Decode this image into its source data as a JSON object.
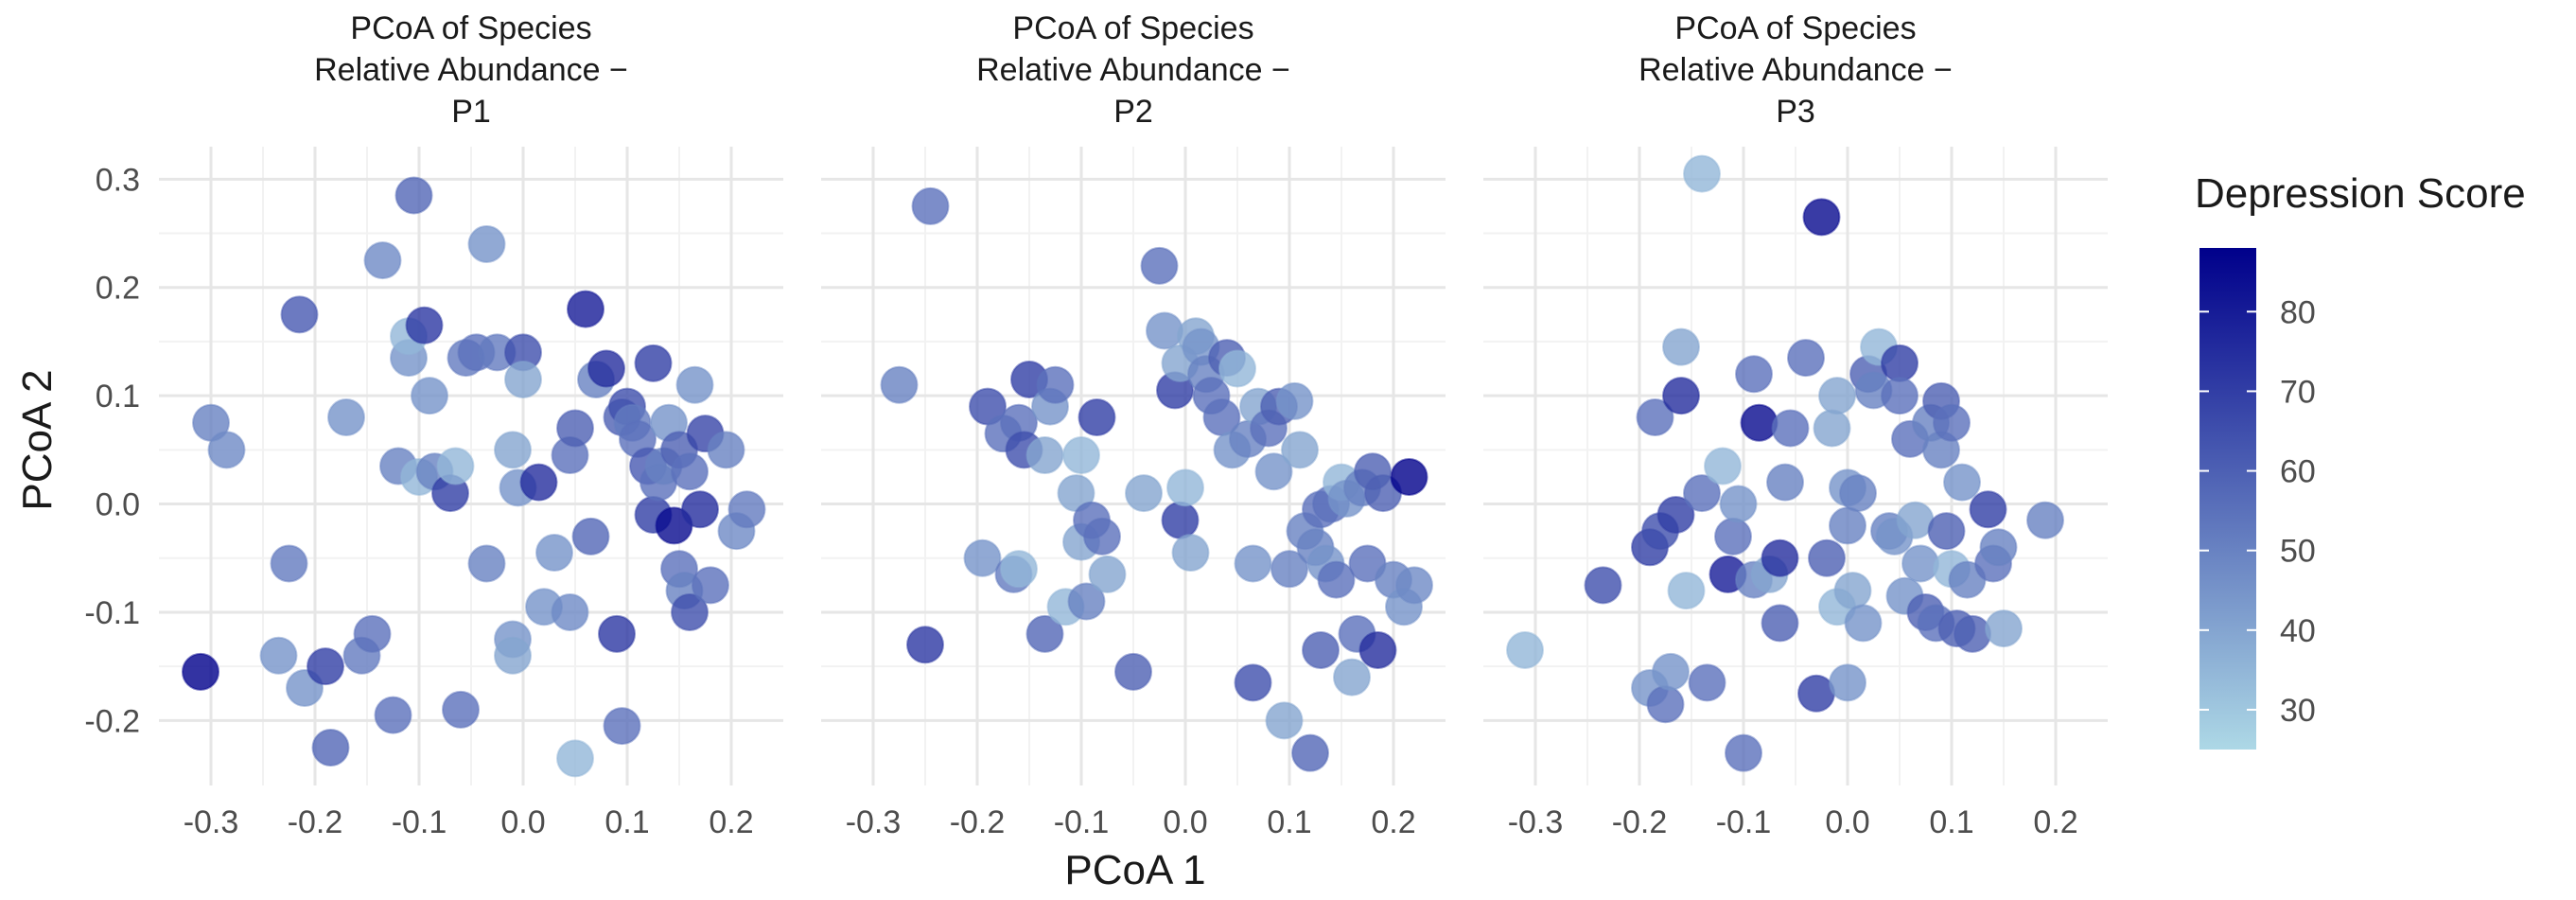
{
  "chart_data": {
    "type": "scatter",
    "xlabel": "PCoA 1",
    "ylabel": "PCoA 2",
    "xlim": [
      -0.35,
      0.25
    ],
    "ylim": [
      -0.26,
      0.33
    ],
    "xticks": [
      "-0.3",
      "-0.2",
      "-0.1",
      "0.0",
      "0.1",
      "0.2"
    ],
    "yticks": [
      "0.3",
      "0.2",
      "0.1",
      "0.0",
      "-0.1",
      "-0.2"
    ],
    "grid": true,
    "legend": {
      "title": "Depression Score",
      "position": "right",
      "min": 25,
      "max": 88,
      "ticks": [
        "80",
        "70",
        "60",
        "50",
        "40",
        "30"
      ],
      "color_low": "#add8e6",
      "color_high": "#00008b"
    },
    "panels": [
      {
        "title_lines": [
          "PCoA of Species",
          "Relative Abundance −",
          "P1"
        ],
        "points": [
          [
            -0.3,
            0.075,
            50
          ],
          [
            -0.285,
            0.05,
            48
          ],
          [
            -0.31,
            -0.155,
            88
          ],
          [
            -0.235,
            -0.14,
            45
          ],
          [
            -0.225,
            -0.055,
            52
          ],
          [
            -0.215,
            0.175,
            62
          ],
          [
            -0.21,
            -0.17,
            45
          ],
          [
            -0.19,
            -0.15,
            70
          ],
          [
            -0.185,
            -0.225,
            58
          ],
          [
            -0.17,
            0.08,
            45
          ],
          [
            -0.155,
            -0.14,
            52
          ],
          [
            -0.145,
            -0.12,
            55
          ],
          [
            -0.135,
            0.225,
            48
          ],
          [
            -0.125,
            -0.195,
            55
          ],
          [
            -0.12,
            0.035,
            50
          ],
          [
            -0.11,
            0.135,
            45
          ],
          [
            -0.11,
            0.155,
            35
          ],
          [
            -0.105,
            0.285,
            58
          ],
          [
            -0.1,
            0.025,
            35
          ],
          [
            -0.095,
            0.165,
            72
          ],
          [
            -0.09,
            0.1,
            45
          ],
          [
            -0.085,
            0.03,
            50
          ],
          [
            -0.07,
            0.01,
            70
          ],
          [
            -0.065,
            0.035,
            35
          ],
          [
            -0.06,
            -0.19,
            55
          ],
          [
            -0.055,
            0.135,
            52
          ],
          [
            -0.045,
            0.14,
            55
          ],
          [
            -0.035,
            0.24,
            45
          ],
          [
            -0.035,
            -0.055,
            50
          ],
          [
            -0.025,
            0.14,
            52
          ],
          [
            -0.01,
            0.05,
            40
          ],
          [
            -0.01,
            -0.125,
            45
          ],
          [
            -0.01,
            -0.14,
            40
          ],
          [
            -0.005,
            0.015,
            45
          ],
          [
            0.0,
            0.14,
            65
          ],
          [
            0.0,
            0.115,
            40
          ],
          [
            0.015,
            0.02,
            75
          ],
          [
            0.02,
            -0.095,
            45
          ],
          [
            0.03,
            -0.045,
            45
          ],
          [
            0.045,
            0.045,
            55
          ],
          [
            0.045,
            -0.1,
            48
          ],
          [
            0.05,
            0.07,
            60
          ],
          [
            0.05,
            -0.235,
            35
          ],
          [
            0.06,
            0.18,
            80
          ],
          [
            0.065,
            -0.03,
            58
          ],
          [
            0.07,
            0.115,
            50
          ],
          [
            0.08,
            0.125,
            75
          ],
          [
            0.09,
            -0.12,
            72
          ],
          [
            0.095,
            -0.205,
            55
          ],
          [
            0.095,
            0.08,
            60
          ],
          [
            0.1,
            0.09,
            65
          ],
          [
            0.105,
            0.075,
            52
          ],
          [
            0.11,
            0.06,
            55
          ],
          [
            0.12,
            0.035,
            62
          ],
          [
            0.125,
            -0.01,
            70
          ],
          [
            0.125,
            0.13,
            70
          ],
          [
            0.13,
            0.02,
            55
          ],
          [
            0.135,
            0.035,
            50
          ],
          [
            0.14,
            0.075,
            45
          ],
          [
            0.145,
            -0.02,
            85
          ],
          [
            0.15,
            0.05,
            60
          ],
          [
            0.15,
            -0.06,
            55
          ],
          [
            0.155,
            -0.08,
            50
          ],
          [
            0.16,
            -0.1,
            65
          ],
          [
            0.16,
            0.03,
            55
          ],
          [
            0.165,
            0.11,
            45
          ],
          [
            0.17,
            -0.005,
            75
          ],
          [
            0.175,
            0.065,
            68
          ],
          [
            0.18,
            -0.075,
            55
          ],
          [
            0.195,
            0.05,
            50
          ],
          [
            0.205,
            -0.025,
            48
          ],
          [
            0.215,
            -0.005,
            52
          ]
        ]
      },
      {
        "title_lines": [
          "PCoA of Species",
          "Relative Abundance −",
          "P2"
        ],
        "points": [
          [
            -0.275,
            0.11,
            50
          ],
          [
            -0.245,
            0.275,
            55
          ],
          [
            -0.25,
            -0.13,
            72
          ],
          [
            -0.195,
            -0.05,
            45
          ],
          [
            -0.19,
            0.09,
            65
          ],
          [
            -0.175,
            0.065,
            55
          ],
          [
            -0.165,
            -0.065,
            52
          ],
          [
            -0.16,
            0.075,
            55
          ],
          [
            -0.16,
            -0.06,
            35
          ],
          [
            -0.155,
            0.05,
            65
          ],
          [
            -0.15,
            0.115,
            70
          ],
          [
            -0.135,
            -0.12,
            58
          ],
          [
            -0.135,
            0.045,
            40
          ],
          [
            -0.13,
            0.09,
            45
          ],
          [
            -0.125,
            0.11,
            55
          ],
          [
            -0.115,
            -0.095,
            35
          ],
          [
            -0.105,
            0.01,
            40
          ],
          [
            -0.1,
            -0.035,
            40
          ],
          [
            -0.1,
            0.045,
            35
          ],
          [
            -0.095,
            -0.09,
            50
          ],
          [
            -0.09,
            -0.015,
            55
          ],
          [
            -0.085,
            0.08,
            70
          ],
          [
            -0.08,
            -0.03,
            55
          ],
          [
            -0.075,
            -0.065,
            40
          ],
          [
            -0.05,
            -0.155,
            60
          ],
          [
            -0.04,
            0.01,
            40
          ],
          [
            -0.025,
            0.22,
            55
          ],
          [
            -0.02,
            0.16,
            45
          ],
          [
            -0.01,
            0.105,
            70
          ],
          [
            -0.005,
            -0.015,
            70
          ],
          [
            -0.005,
            0.13,
            40
          ],
          [
            0.0,
            0.015,
            35
          ],
          [
            0.005,
            -0.045,
            40
          ],
          [
            0.01,
            0.155,
            40
          ],
          [
            0.015,
            0.145,
            45
          ],
          [
            0.02,
            0.12,
            50
          ],
          [
            0.025,
            0.1,
            55
          ],
          [
            0.035,
            0.08,
            55
          ],
          [
            0.04,
            0.135,
            60
          ],
          [
            0.045,
            0.05,
            45
          ],
          [
            0.05,
            0.125,
            35
          ],
          [
            0.06,
            0.06,
            50
          ],
          [
            0.065,
            -0.055,
            45
          ],
          [
            0.065,
            -0.165,
            65
          ],
          [
            0.07,
            0.09,
            40
          ],
          [
            0.08,
            0.07,
            55
          ],
          [
            0.085,
            0.03,
            45
          ],
          [
            0.09,
            0.09,
            60
          ],
          [
            0.095,
            -0.2,
            40
          ],
          [
            0.1,
            -0.06,
            50
          ],
          [
            0.105,
            0.095,
            45
          ],
          [
            0.11,
            0.05,
            40
          ],
          [
            0.115,
            -0.025,
            50
          ],
          [
            0.12,
            -0.23,
            58
          ],
          [
            0.125,
            -0.04,
            50
          ],
          [
            0.13,
            -0.135,
            60
          ],
          [
            0.13,
            -0.005,
            55
          ],
          [
            0.135,
            -0.055,
            45
          ],
          [
            0.14,
            0.0,
            55
          ],
          [
            0.145,
            -0.07,
            55
          ],
          [
            0.15,
            0.02,
            35
          ],
          [
            0.155,
            0.005,
            45
          ],
          [
            0.16,
            -0.16,
            40
          ],
          [
            0.165,
            -0.12,
            55
          ],
          [
            0.17,
            0.015,
            50
          ],
          [
            0.175,
            -0.055,
            55
          ],
          [
            0.18,
            0.03,
            60
          ],
          [
            0.185,
            -0.135,
            75
          ],
          [
            0.19,
            0.01,
            60
          ],
          [
            0.2,
            -0.07,
            50
          ],
          [
            0.21,
            -0.095,
            45
          ],
          [
            0.215,
            0.025,
            88
          ],
          [
            0.22,
            -0.075,
            48
          ]
        ]
      },
      {
        "title_lines": [
          "PCoA of Species",
          "Relative Abundance −",
          "P3"
        ],
        "points": [
          [
            -0.31,
            -0.135,
            35
          ],
          [
            -0.235,
            -0.075,
            65
          ],
          [
            -0.19,
            -0.04,
            70
          ],
          [
            -0.19,
            -0.17,
            45
          ],
          [
            -0.185,
            0.08,
            55
          ],
          [
            -0.18,
            -0.025,
            65
          ],
          [
            -0.175,
            -0.185,
            55
          ],
          [
            -0.17,
            -0.155,
            45
          ],
          [
            -0.165,
            -0.01,
            70
          ],
          [
            -0.16,
            0.145,
            40
          ],
          [
            -0.16,
            0.1,
            75
          ],
          [
            -0.155,
            -0.08,
            35
          ],
          [
            -0.14,
            0.01,
            55
          ],
          [
            -0.14,
            0.305,
            35
          ],
          [
            -0.135,
            -0.165,
            55
          ],
          [
            -0.12,
            0.035,
            35
          ],
          [
            -0.115,
            -0.065,
            80
          ],
          [
            -0.11,
            -0.03,
            55
          ],
          [
            -0.105,
            0.0,
            45
          ],
          [
            -0.1,
            -0.23,
            55
          ],
          [
            -0.09,
            0.12,
            55
          ],
          [
            -0.09,
            -0.07,
            50
          ],
          [
            -0.085,
            0.075,
            85
          ],
          [
            -0.075,
            -0.065,
            40
          ],
          [
            -0.065,
            -0.05,
            75
          ],
          [
            -0.065,
            -0.11,
            60
          ],
          [
            -0.06,
            0.02,
            50
          ],
          [
            -0.055,
            0.07,
            55
          ],
          [
            -0.04,
            0.135,
            55
          ],
          [
            -0.03,
            -0.175,
            70
          ],
          [
            -0.025,
            0.265,
            85
          ],
          [
            -0.02,
            -0.05,
            60
          ],
          [
            -0.015,
            0.07,
            40
          ],
          [
            -0.01,
            0.1,
            40
          ],
          [
            -0.01,
            -0.095,
            35
          ],
          [
            0.0,
            0.015,
            45
          ],
          [
            0.0,
            -0.02,
            50
          ],
          [
            0.0,
            -0.165,
            45
          ],
          [
            0.005,
            -0.08,
            40
          ],
          [
            0.01,
            0.01,
            50
          ],
          [
            0.015,
            -0.11,
            45
          ],
          [
            0.02,
            0.12,
            60
          ],
          [
            0.025,
            0.105,
            50
          ],
          [
            0.03,
            0.145,
            35
          ],
          [
            0.04,
            -0.025,
            50
          ],
          [
            0.045,
            -0.03,
            45
          ],
          [
            0.05,
            0.13,
            70
          ],
          [
            0.05,
            0.1,
            55
          ],
          [
            0.055,
            -0.085,
            45
          ],
          [
            0.06,
            0.06,
            55
          ],
          [
            0.065,
            -0.015,
            40
          ],
          [
            0.07,
            -0.055,
            45
          ],
          [
            0.075,
            -0.1,
            60
          ],
          [
            0.08,
            0.075,
            50
          ],
          [
            0.085,
            -0.11,
            55
          ],
          [
            0.09,
            0.095,
            60
          ],
          [
            0.09,
            0.05,
            50
          ],
          [
            0.095,
            -0.025,
            60
          ],
          [
            0.1,
            -0.06,
            35
          ],
          [
            0.1,
            0.075,
            55
          ],
          [
            0.105,
            -0.115,
            60
          ],
          [
            0.11,
            0.02,
            45
          ],
          [
            0.115,
            -0.07,
            50
          ],
          [
            0.12,
            -0.12,
            60
          ],
          [
            0.135,
            -0.005,
            70
          ],
          [
            0.14,
            -0.055,
            55
          ],
          [
            0.145,
            -0.04,
            50
          ],
          [
            0.15,
            -0.115,
            40
          ],
          [
            0.19,
            -0.015,
            50
          ]
        ]
      }
    ]
  }
}
